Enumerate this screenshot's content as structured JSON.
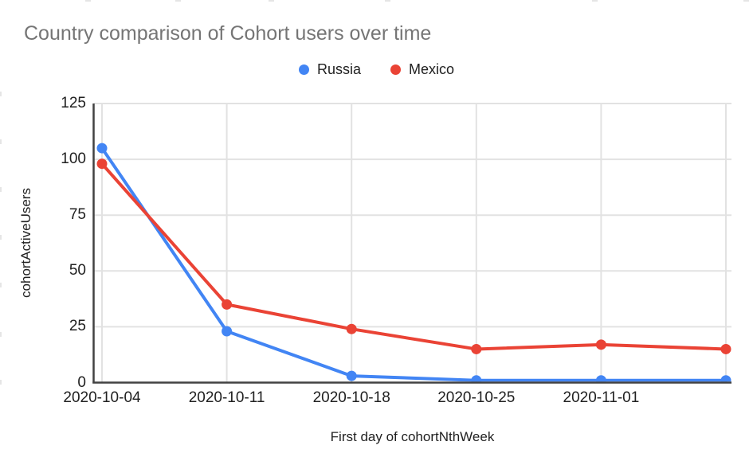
{
  "title": "Country comparison of Cohort users over time",
  "chart_data": {
    "type": "line",
    "title": "Country comparison of Cohort users over time",
    "xlabel": "First day of cohortNthWeek",
    "ylabel": "cohortActiveUsers",
    "x_tick_labels": [
      "2020-10-04",
      "2020-10-11",
      "2020-10-18",
      "2020-10-25",
      "2020-11-01"
    ],
    "num_points": 6,
    "y_ticks": [
      0,
      25,
      50,
      75,
      100,
      125
    ],
    "ylim": [
      0,
      125
    ],
    "grid": true,
    "legend_position": "top",
    "series": [
      {
        "name": "Russia",
        "color": "#4285F4",
        "values": [
          105,
          23,
          3,
          1,
          1,
          1
        ]
      },
      {
        "name": "Mexico",
        "color": "#EA4335",
        "values": [
          98,
          35,
          24,
          15,
          17,
          15
        ]
      }
    ],
    "colors": {
      "title_text": "#757575",
      "tick_text": "#212121",
      "grid_line": "#e2e2e2",
      "axis_line": "#424242",
      "background": "#ffffff"
    }
  }
}
